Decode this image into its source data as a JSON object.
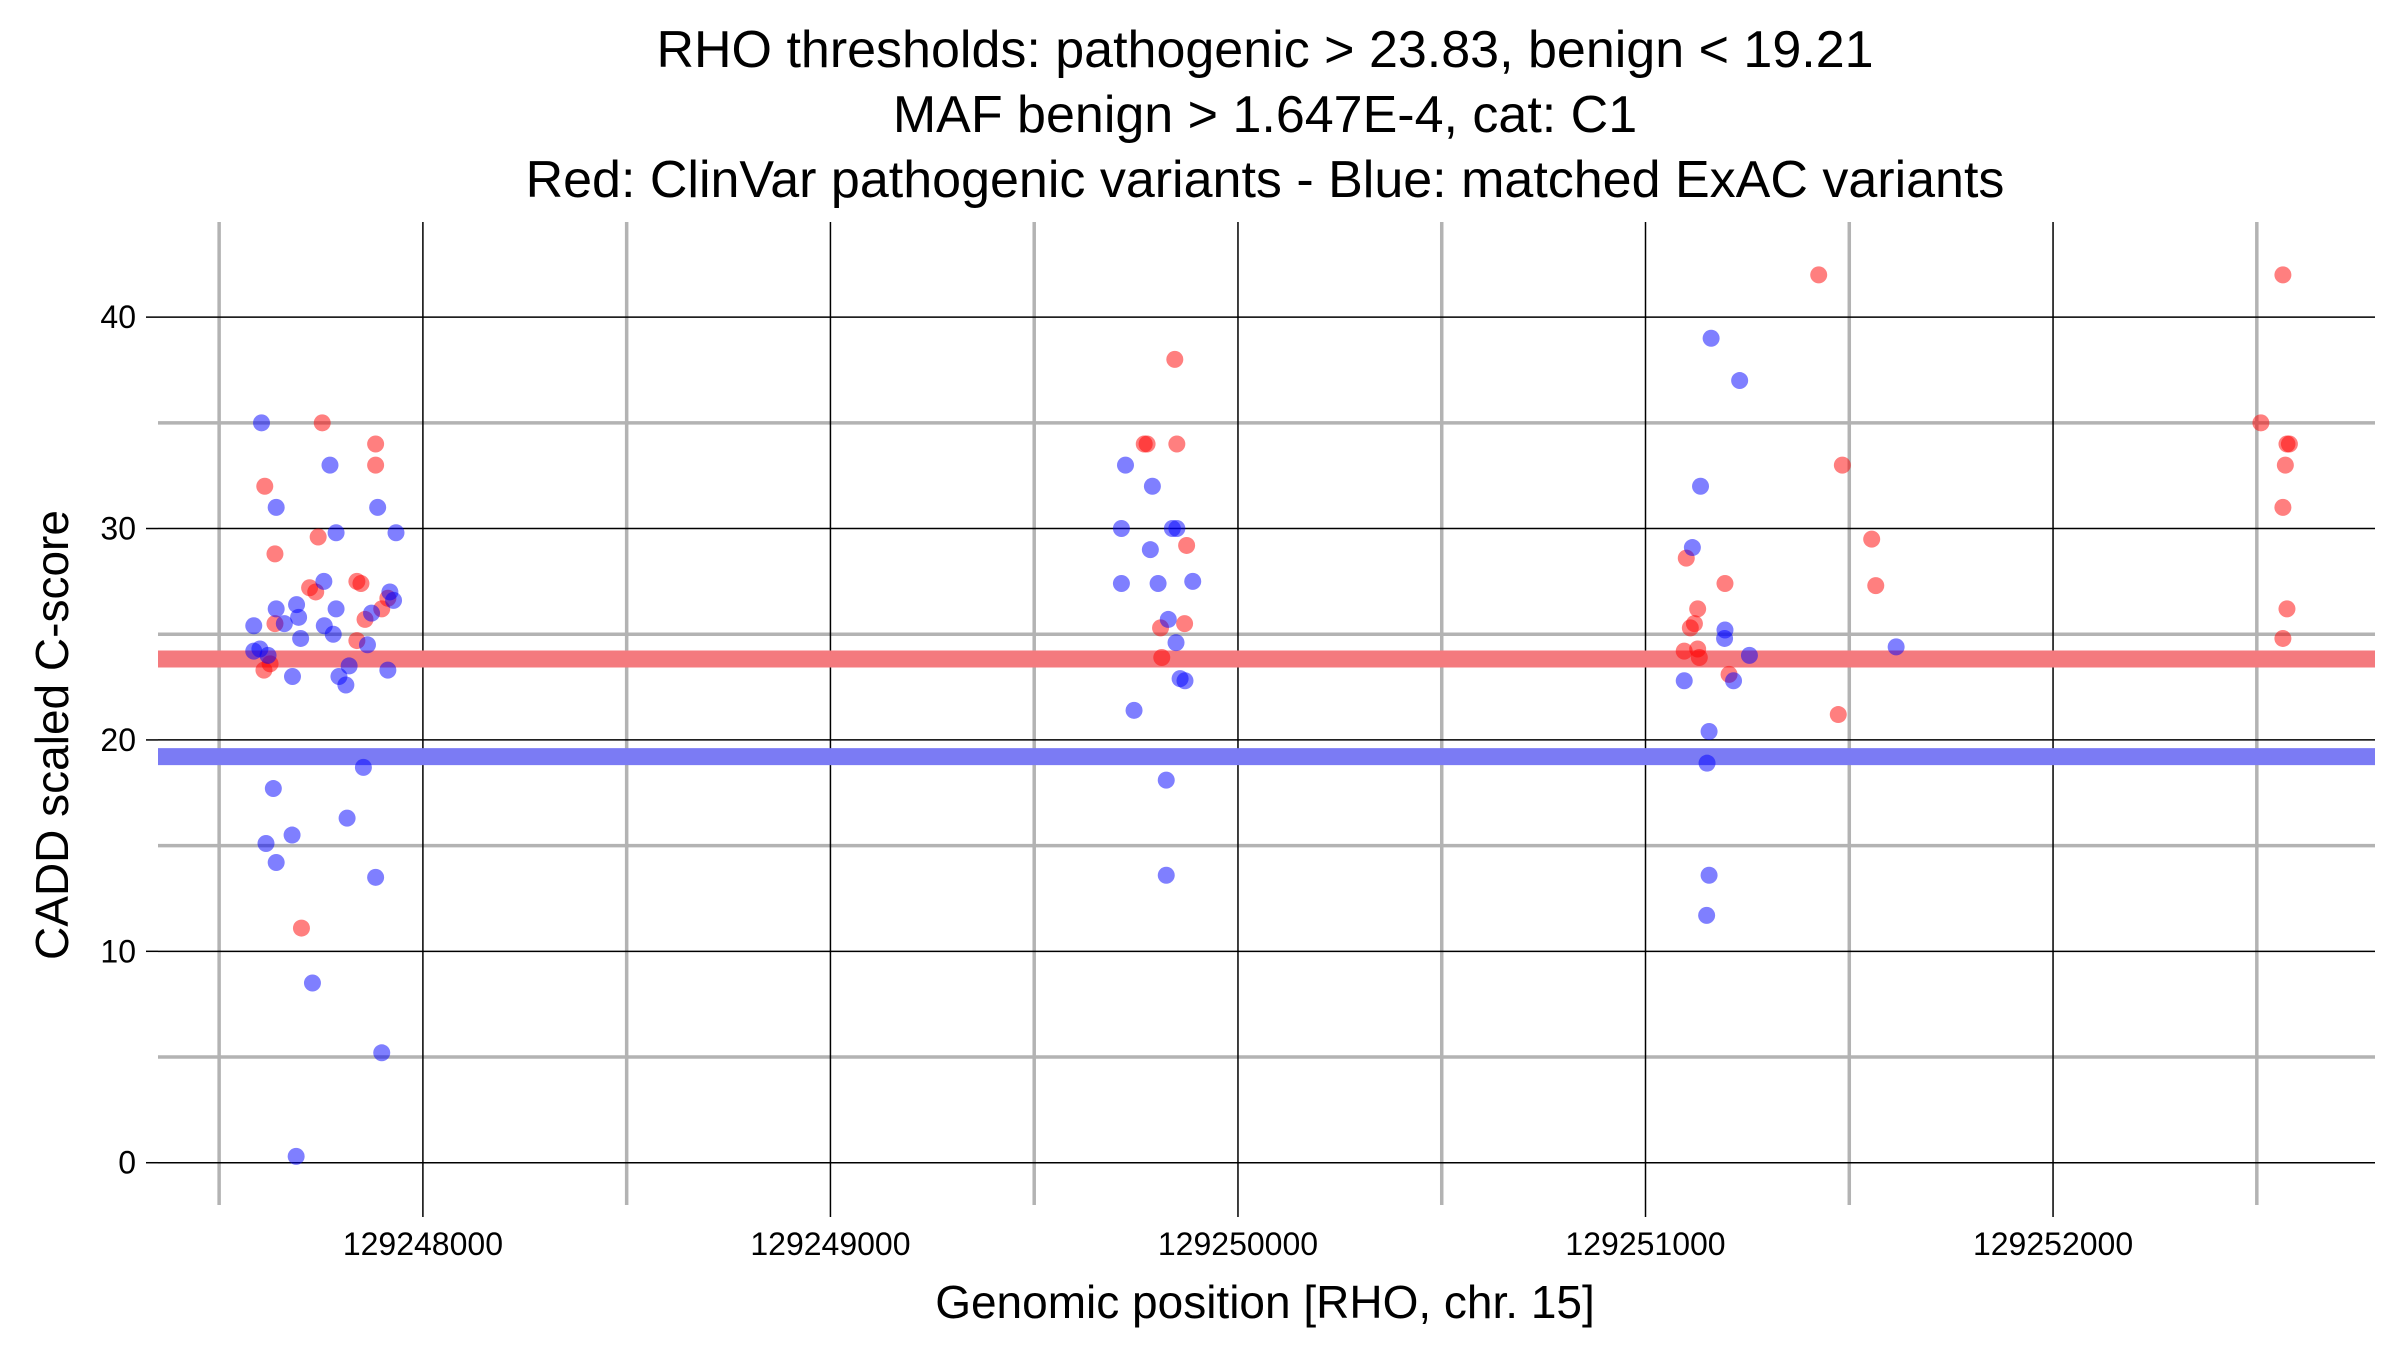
{
  "chart_data": {
    "type": "scatter",
    "title_lines": [
      "RHO thresholds: pathogenic > 23.83, benign < 19.21",
      "MAF benign > 1.647E-4, cat: C1",
      "Red: ClinVar pathogenic variants - Blue: matched ExAC variants"
    ],
    "xlabel": "Genomic position [RHO, chr. 15]",
    "ylabel": "CADD scaled C-score",
    "xlim": [
      129247350,
      129252790
    ],
    "ylim": [
      -2,
      44.5
    ],
    "x_major_ticks": [
      129248000,
      129249000,
      129250000,
      129251000,
      129252000
    ],
    "x_tick_labels": [
      "129248000",
      "129249000",
      "129250000",
      "129251000",
      "129252000"
    ],
    "x_minor_lines": [
      129247500,
      129248500,
      129249500,
      129250500,
      129251500,
      129252500
    ],
    "y_major_ticks": [
      0,
      10,
      20,
      30,
      40
    ],
    "y_tick_labels": [
      "0",
      "10",
      "20",
      "30",
      "40"
    ],
    "y_minor_lines": [
      5,
      15,
      25,
      35
    ],
    "thresholds": [
      {
        "name": "pathogenic",
        "value": 23.83,
        "color": "#f47a7e"
      },
      {
        "name": "benign",
        "value": 19.21,
        "color": "#7b7bf4"
      }
    ],
    "series": [
      {
        "name": "ClinVar pathogenic variants",
        "color": "#ff0000",
        "points": [
          {
            "x": 129247612,
            "y": 32.0
          },
          {
            "x": 129247637,
            "y": 28.8
          },
          {
            "x": 129247637,
            "y": 25.5
          },
          {
            "x": 129247625,
            "y": 23.6
          },
          {
            "x": 129247610,
            "y": 23.3
          },
          {
            "x": 129247702,
            "y": 11.1
          },
          {
            "x": 129247753,
            "y": 35.0
          },
          {
            "x": 129247743,
            "y": 29.6
          },
          {
            "x": 129247722,
            "y": 27.2
          },
          {
            "x": 129247737,
            "y": 27.0
          },
          {
            "x": 129247838,
            "y": 27.5
          },
          {
            "x": 129247848,
            "y": 27.4
          },
          {
            "x": 129247858,
            "y": 25.7
          },
          {
            "x": 129247838,
            "y": 24.7
          },
          {
            "x": 129247884,
            "y": 34.0
          },
          {
            "x": 129247884,
            "y": 33.0
          },
          {
            "x": 129247899,
            "y": 26.2
          },
          {
            "x": 129247914,
            "y": 26.7
          },
          {
            "x": 129249770,
            "y": 34.0
          },
          {
            "x": 129249777,
            "y": 34.0
          },
          {
            "x": 129249845,
            "y": 38.0
          },
          {
            "x": 129249850,
            "y": 34.0
          },
          {
            "x": 129249874,
            "y": 29.2
          },
          {
            "x": 129249869,
            "y": 25.5
          },
          {
            "x": 129249810,
            "y": 25.3
          },
          {
            "x": 129249813,
            "y": 23.9
          },
          {
            "x": 129251100,
            "y": 28.6
          },
          {
            "x": 129251110,
            "y": 25.3
          },
          {
            "x": 129251120,
            "y": 25.5
          },
          {
            "x": 129251128,
            "y": 26.2
          },
          {
            "x": 129251095,
            "y": 24.2
          },
          {
            "x": 129251128,
            "y": 24.3
          },
          {
            "x": 129251132,
            "y": 23.9
          },
          {
            "x": 129251195,
            "y": 27.4
          },
          {
            "x": 129251205,
            "y": 23.1
          },
          {
            "x": 129251425,
            "y": 42.0
          },
          {
            "x": 129251483,
            "y": 33.0
          },
          {
            "x": 129251473,
            "y": 21.2
          },
          {
            "x": 129251555,
            "y": 29.5
          },
          {
            "x": 129251565,
            "y": 27.3
          },
          {
            "x": 129252510,
            "y": 35.0
          },
          {
            "x": 129252564,
            "y": 42.0
          },
          {
            "x": 129252574,
            "y": 34.0
          },
          {
            "x": 129252580,
            "y": 34.0
          },
          {
            "x": 129252570,
            "y": 33.0
          },
          {
            "x": 129252564,
            "y": 31.0
          },
          {
            "x": 129252574,
            "y": 26.2
          },
          {
            "x": 129252564,
            "y": 24.8
          }
        ]
      },
      {
        "name": "matched ExAC variants",
        "color": "#0000ff",
        "points": [
          {
            "x": 129247604,
            "y": 35.0
          },
          {
            "x": 129247585,
            "y": 25.4
          },
          {
            "x": 129247585,
            "y": 24.2
          },
          {
            "x": 129247600,
            "y": 24.3
          },
          {
            "x": 129247620,
            "y": 24.0
          },
          {
            "x": 129247640,
            "y": 31.0
          },
          {
            "x": 129247640,
            "y": 26.2
          },
          {
            "x": 129247660,
            "y": 25.5
          },
          {
            "x": 129247690,
            "y": 26.4
          },
          {
            "x": 129247695,
            "y": 25.8
          },
          {
            "x": 129247700,
            "y": 24.8
          },
          {
            "x": 129247680,
            "y": 23.0
          },
          {
            "x": 129247633,
            "y": 17.7
          },
          {
            "x": 129247615,
            "y": 15.1
          },
          {
            "x": 129247640,
            "y": 14.2
          },
          {
            "x": 129247679,
            "y": 15.5
          },
          {
            "x": 129247729,
            "y": 8.5
          },
          {
            "x": 129247689,
            "y": 0.3
          },
          {
            "x": 129247772,
            "y": 33.0
          },
          {
            "x": 129247787,
            "y": 29.8
          },
          {
            "x": 129247757,
            "y": 27.5
          },
          {
            "x": 129247787,
            "y": 26.2
          },
          {
            "x": 129247758,
            "y": 25.4
          },
          {
            "x": 129247780,
            "y": 25.0
          },
          {
            "x": 129247794,
            "y": 23.0
          },
          {
            "x": 129247819,
            "y": 23.5
          },
          {
            "x": 129247811,
            "y": 22.6
          },
          {
            "x": 129247864,
            "y": 24.5
          },
          {
            "x": 129247874,
            "y": 26.0
          },
          {
            "x": 129247854,
            "y": 18.7
          },
          {
            "x": 129247814,
            "y": 16.3
          },
          {
            "x": 129247889,
            "y": 31.0
          },
          {
            "x": 129247919,
            "y": 27.0
          },
          {
            "x": 129247928,
            "y": 26.6
          },
          {
            "x": 129247934,
            "y": 29.8
          },
          {
            "x": 129247914,
            "y": 23.3
          },
          {
            "x": 129247884,
            "y": 13.5
          },
          {
            "x": 129247899,
            "y": 5.2
          },
          {
            "x": 129249724,
            "y": 33.0
          },
          {
            "x": 129249714,
            "y": 30.0
          },
          {
            "x": 129249790,
            "y": 32.0
          },
          {
            "x": 129249839,
            "y": 30.0
          },
          {
            "x": 129249850,
            "y": 30.0
          },
          {
            "x": 129249785,
            "y": 29.0
          },
          {
            "x": 129249714,
            "y": 27.4
          },
          {
            "x": 129249804,
            "y": 27.4
          },
          {
            "x": 129249889,
            "y": 27.5
          },
          {
            "x": 129249829,
            "y": 25.7
          },
          {
            "x": 129249848,
            "y": 24.6
          },
          {
            "x": 129249858,
            "y": 22.9
          },
          {
            "x": 129249870,
            "y": 22.8
          },
          {
            "x": 129249745,
            "y": 21.4
          },
          {
            "x": 129249824,
            "y": 18.1
          },
          {
            "x": 129249824,
            "y": 13.6
          },
          {
            "x": 129251161,
            "y": 39.0
          },
          {
            "x": 129251231,
            "y": 37.0
          },
          {
            "x": 129251135,
            "y": 32.0
          },
          {
            "x": 129251115,
            "y": 29.1
          },
          {
            "x": 129251195,
            "y": 25.2
          },
          {
            "x": 129251194,
            "y": 24.8
          },
          {
            "x": 129251255,
            "y": 24.0
          },
          {
            "x": 129251216,
            "y": 22.8
          },
          {
            "x": 129251095,
            "y": 22.8
          },
          {
            "x": 129251156,
            "y": 20.4
          },
          {
            "x": 129251151,
            "y": 18.9
          },
          {
            "x": 129251156,
            "y": 13.6
          },
          {
            "x": 129251150,
            "y": 11.7
          },
          {
            "x": 129251615,
            "y": 24.4
          }
        ]
      }
    ]
  }
}
